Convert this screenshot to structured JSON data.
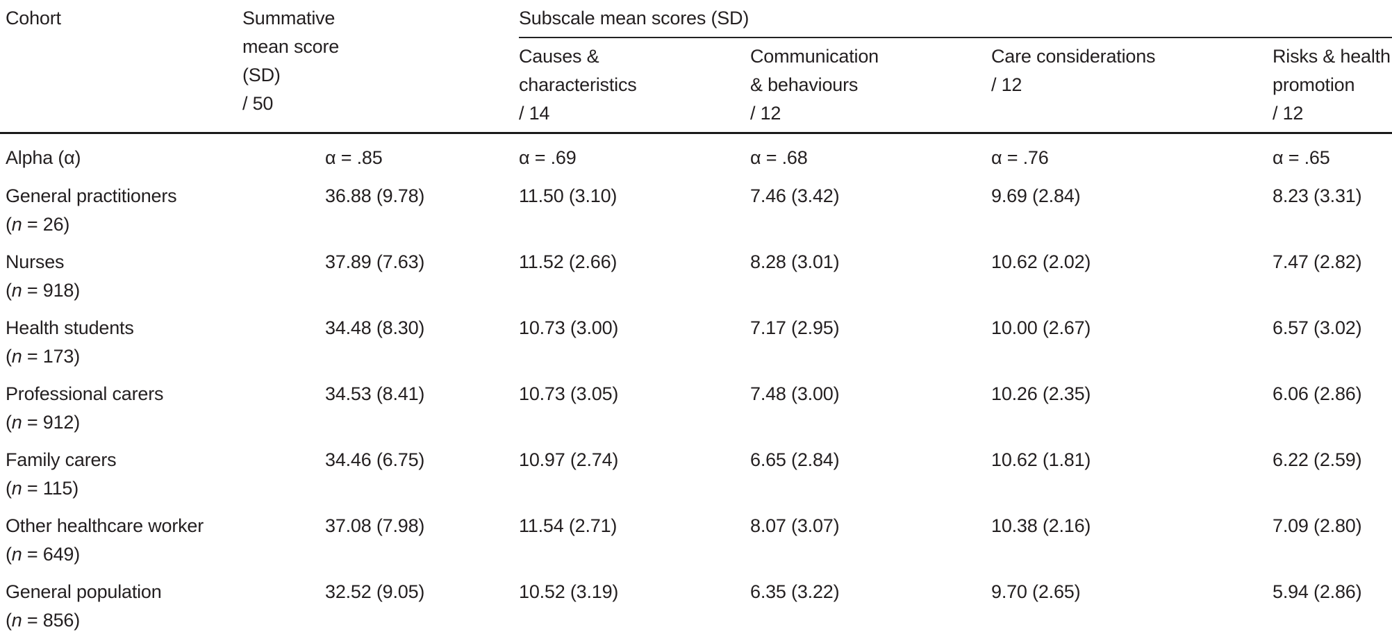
{
  "table": {
    "header": {
      "cohort": "Cohort",
      "summative": "Summative\nmean score\n(SD)\n/ 50",
      "subscale_group": "Subscale mean scores (SD)",
      "subscales": [
        "Causes &\ncharacteristics\n/ 14",
        "Communication\n& behaviours\n/ 12",
        "Care considerations\n/ 12",
        "Risks & health\npromotion\n/ 12"
      ]
    },
    "alpha_row": {
      "label": "Alpha (α)",
      "values": [
        "α = .85",
        "α = .69",
        "α = .68",
        "α = .76",
        "α = .65"
      ]
    },
    "rows": [
      {
        "label": "General practitioners",
        "n": "(n = 26)",
        "values": [
          "36.88 (9.78)",
          "11.50 (3.10)",
          "7.46 (3.42)",
          "9.69 (2.84)",
          "8.23 (3.31)"
        ]
      },
      {
        "label": "Nurses",
        "n": "(n = 918)",
        "values": [
          "37.89 (7.63)",
          "11.52 (2.66)",
          "8.28 (3.01)",
          "10.62 (2.02)",
          "7.47 (2.82)"
        ]
      },
      {
        "label": "Health students",
        "n": "(n = 173)",
        "values": [
          "34.48 (8.30)",
          "10.73 (3.00)",
          "7.17 (2.95)",
          "10.00 (2.67)",
          "6.57 (3.02)"
        ]
      },
      {
        "label": "Professional carers",
        "n": "(n = 912)",
        "values": [
          "34.53 (8.41)",
          "10.73 (3.05)",
          "7.48 (3.00)",
          "10.26 (2.35)",
          "6.06 (2.86)"
        ]
      },
      {
        "label": "Family carers",
        "n": "(n = 115)",
        "values": [
          "34.46 (6.75)",
          "10.97 (2.74)",
          "6.65 (2.84)",
          "10.62 (1.81)",
          "6.22 (2.59)"
        ]
      },
      {
        "label": "Other healthcare worker",
        "n": "(n = 649)",
        "values": [
          "37.08 (7.98)",
          "11.54 (2.71)",
          "8.07 (3.07)",
          "10.38 (2.16)",
          "7.09 (2.80)"
        ]
      },
      {
        "label": "General population",
        "n": "(n = 856)",
        "values": [
          "32.52 (9.05)",
          "10.52 (3.19)",
          "6.35 (3.22)",
          "9.70 (2.65)",
          "5.94 (2.86)"
        ]
      }
    ]
  },
  "colors": {
    "text": "#231f20",
    "rule": "#1a1a1a"
  }
}
